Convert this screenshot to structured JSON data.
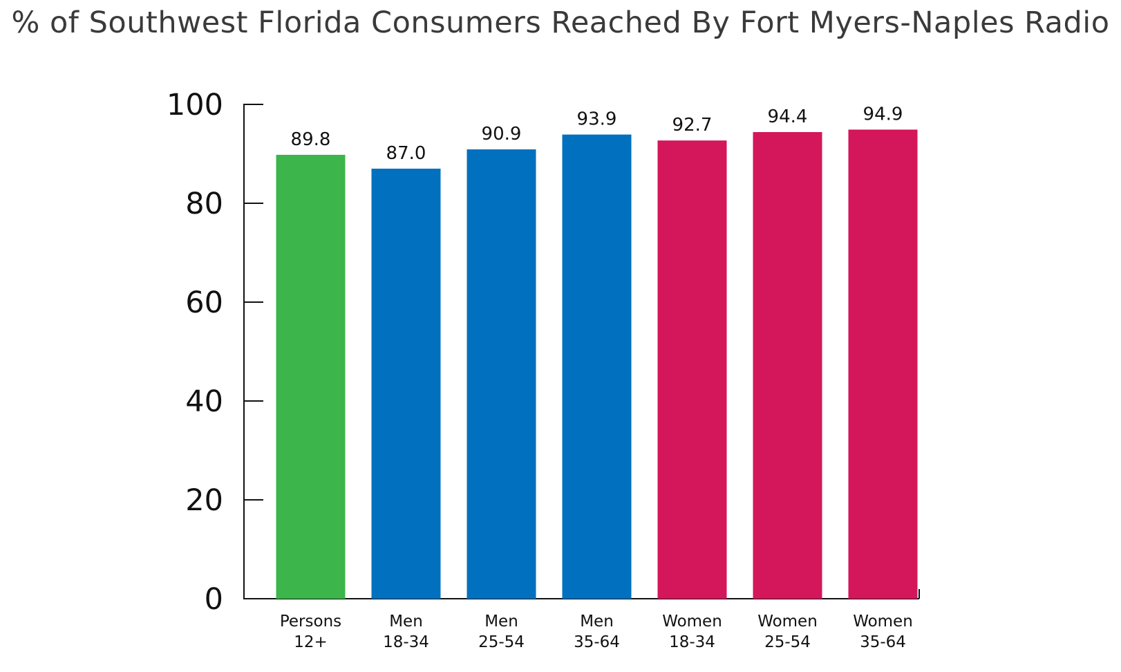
{
  "chart_data": {
    "type": "bar",
    "title": "% of Southwest Florida Consumers Reached By Fort Myers-Naples Radio",
    "xlabel": "",
    "ylabel": "",
    "ylim": [
      0,
      100
    ],
    "yticks": [
      0,
      20,
      40,
      60,
      80,
      100
    ],
    "categories": [
      [
        "Persons",
        "12+"
      ],
      [
        "Men",
        "18-34"
      ],
      [
        "Men",
        "25-54"
      ],
      [
        "Men",
        "35-64"
      ],
      [
        "Women",
        "18-34"
      ],
      [
        "Women",
        "25-54"
      ],
      [
        "Women",
        "35-64"
      ]
    ],
    "values": [
      89.8,
      87.0,
      90.9,
      93.9,
      92.7,
      94.4,
      94.9
    ],
    "value_labels": [
      "89.8",
      "87.0",
      "90.9",
      "93.9",
      "92.7",
      "94.4",
      "94.9"
    ],
    "colors": [
      "#3cb54a",
      "#0070bf",
      "#0070bf",
      "#0070bf",
      "#d4165a",
      "#d4165a",
      "#d4165a"
    ],
    "grid": false,
    "legend": "none"
  }
}
